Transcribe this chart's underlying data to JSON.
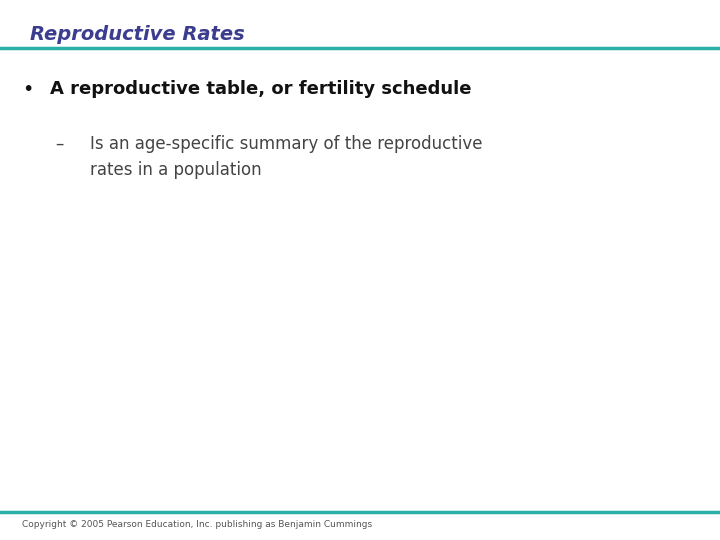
{
  "title": "Reproductive Rates",
  "title_color": "#3d3d8f",
  "title_fontstyle": "italic",
  "title_fontsize": 14,
  "title_fontweight": "bold",
  "line_color": "#2ab0a8",
  "line_thickness": 2.5,
  "bullet_text": "A reproductive table, or fertility schedule",
  "bullet_fontsize": 13,
  "bullet_color": "#111111",
  "sub_bullet_text": "Is an age-specific summary of the reproductive\nrates in a population",
  "sub_bullet_fontsize": 12,
  "sub_bullet_color": "#444444",
  "copyright_text": "Copyright © 2005 Pearson Education, Inc. publishing as Benjamin Cummings",
  "copyright_fontsize": 6.5,
  "copyright_color": "#555555",
  "background_color": "#ffffff"
}
